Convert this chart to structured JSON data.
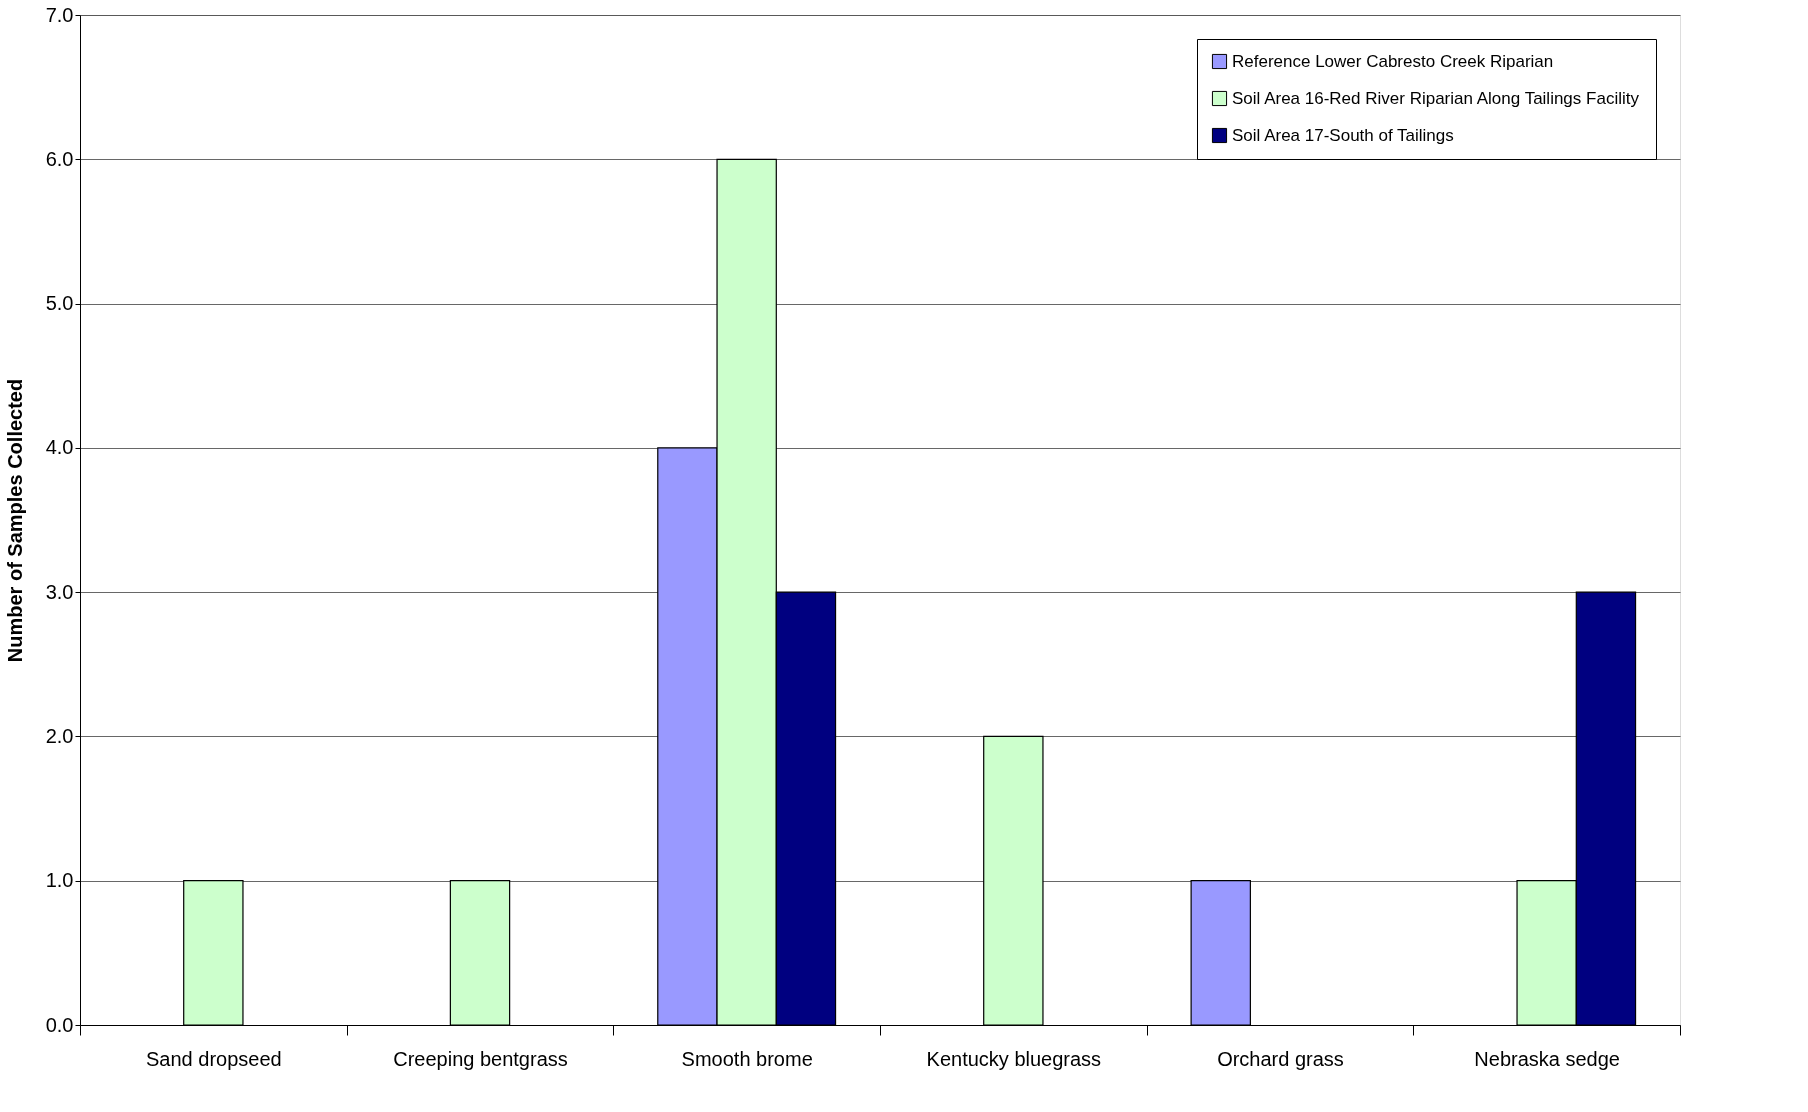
{
  "chart_data": {
    "type": "bar",
    "ylabel": "Number of Samples Collected",
    "categories": [
      "Sand dropseed",
      "Creeping bentgrass",
      "Smooth brome",
      "Kentucky bluegrass",
      "Orchard grass",
      "Nebraska sedge"
    ],
    "series": [
      {
        "name": "Reference Lower Cabresto Creek Riparian",
        "color": "#9999ff",
        "values": [
          null,
          null,
          4.0,
          null,
          1.0,
          null
        ]
      },
      {
        "name": "Soil Area 16-Red River Riparian Along Tailings Facility",
        "color": "#ccffcc",
        "values": [
          1.0,
          1.0,
          6.0,
          2.0,
          null,
          1.0
        ]
      },
      {
        "name": "Soil Area 17-South of Tailings",
        "color": "#000080",
        "values": [
          null,
          null,
          3.0,
          null,
          null,
          3.0
        ]
      }
    ],
    "ylim": [
      0,
      7
    ],
    "yticks": [
      {
        "value": 0,
        "label": "0.0"
      },
      {
        "value": 1,
        "label": "1.0"
      },
      {
        "value": 2,
        "label": "2.0"
      },
      {
        "value": 3,
        "label": "3.0"
      },
      {
        "value": 4,
        "label": "4.0"
      },
      {
        "value": 5,
        "label": "5.0"
      },
      {
        "value": 6,
        "label": "6.0"
      },
      {
        "value": 7,
        "label": "7.0"
      }
    ],
    "grid": "y",
    "legend": "top right"
  }
}
